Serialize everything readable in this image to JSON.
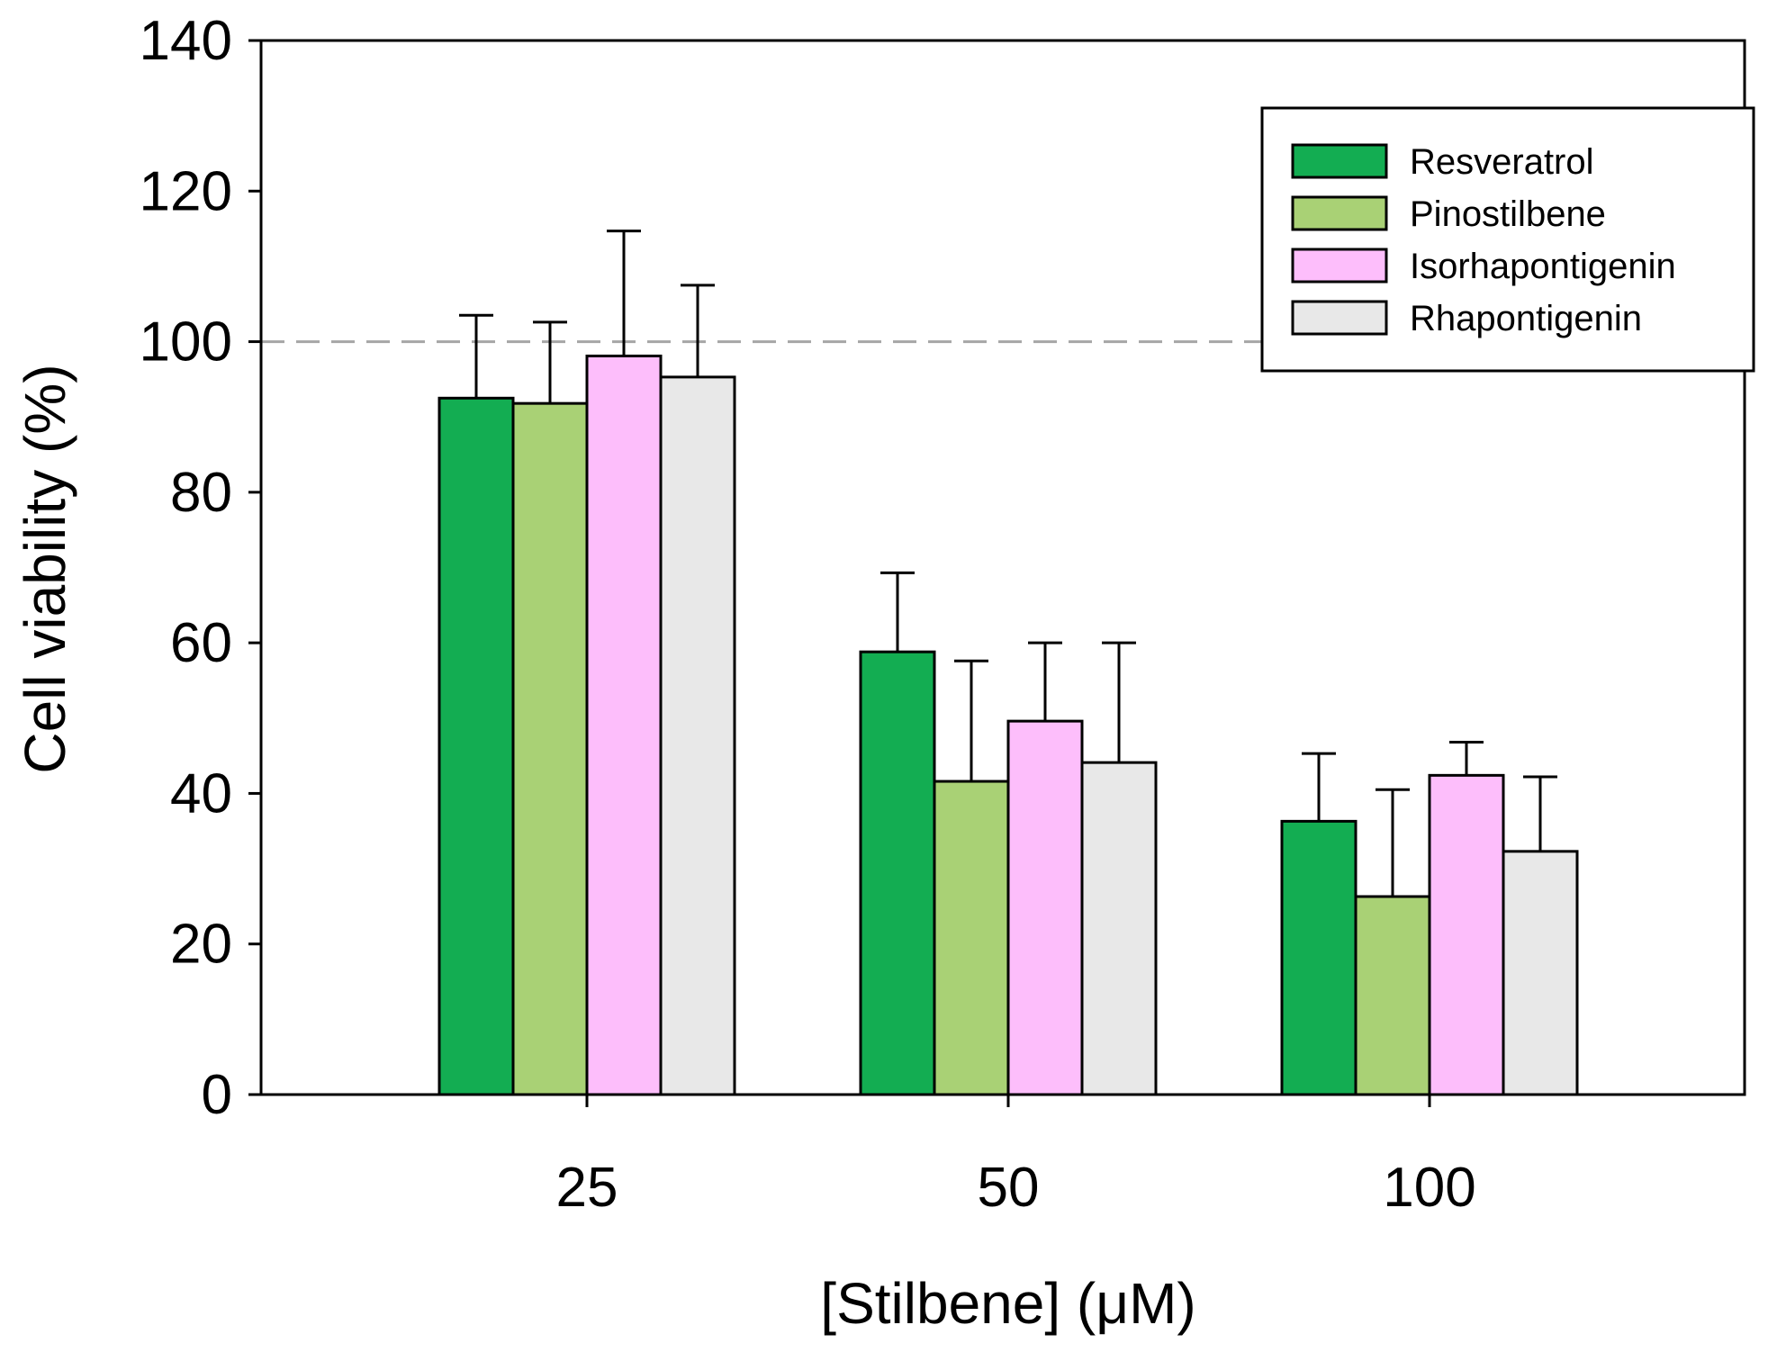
{
  "chart_data": {
    "type": "bar",
    "title": "",
    "xlabel": "[Stilbene] (μM)",
    "ylabel": "Cell viability (%)",
    "categories": [
      "25",
      "50",
      "100"
    ],
    "ylim": [
      0,
      140
    ],
    "yticks": [
      0,
      20,
      40,
      60,
      80,
      100,
      120,
      140
    ],
    "reference_line": {
      "y": 100,
      "style": "dashed",
      "color": "#a6a6a6"
    },
    "legend_position": "top-right",
    "series": [
      {
        "name": "Resveratrol",
        "color": "#13ad52",
        "values": [
          92.5,
          58.8,
          36.3
        ],
        "errors": [
          11.0,
          10.5,
          9.0
        ]
      },
      {
        "name": "Pinostilbene",
        "color": "#a9d175",
        "values": [
          91.8,
          41.6,
          26.3
        ],
        "errors": [
          10.8,
          16.0,
          14.2
        ]
      },
      {
        "name": "Isorhapontigenin",
        "color": "#fdbefb",
        "values": [
          98.1,
          49.6,
          42.4
        ],
        "errors": [
          16.6,
          10.4,
          4.4
        ]
      },
      {
        "name": "Rhapontigenin",
        "color": "#e8e8e8",
        "values": [
          95.3,
          44.1,
          32.3
        ],
        "errors": [
          12.2,
          15.9,
          9.9
        ]
      }
    ]
  }
}
